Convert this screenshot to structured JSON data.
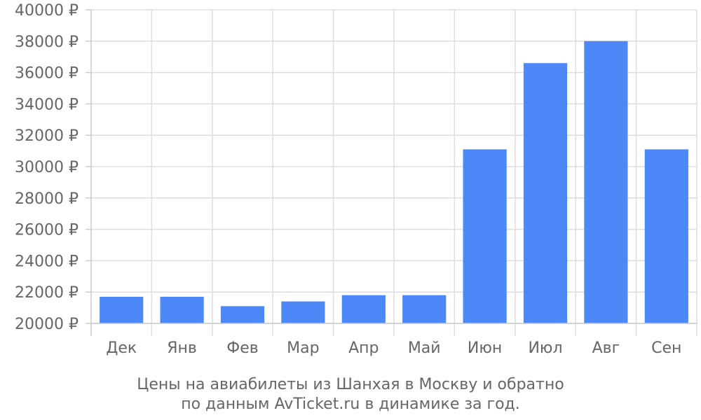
{
  "chart_data": {
    "type": "bar",
    "categories": [
      "Дек",
      "Янв",
      "Фев",
      "Мар",
      "Апр",
      "Май",
      "Июн",
      "Июл",
      "Авг",
      "Сен"
    ],
    "values": [
      21700,
      21700,
      21100,
      21400,
      21800,
      21800,
      31100,
      36600,
      38000,
      31100
    ],
    "ylim": [
      20000,
      40000
    ],
    "yticks": [
      20000,
      22000,
      24000,
      26000,
      28000,
      30000,
      32000,
      34000,
      36000,
      38000,
      40000
    ],
    "ytick_labels": [
      "20000 ₽",
      "22000 ₽",
      "24000 ₽",
      "26000 ₽",
      "28000 ₽",
      "30000 ₽",
      "32000 ₽",
      "34000 ₽",
      "36000 ₽",
      "38000 ₽",
      "40000 ₽"
    ],
    "grid": true,
    "bar_color": "#4d88f9",
    "title_lines": [
      "Цены на авиабилеты из Шанхая в Москву и обратно",
      "по данным AvTicket.ru в динамике за год."
    ]
  }
}
